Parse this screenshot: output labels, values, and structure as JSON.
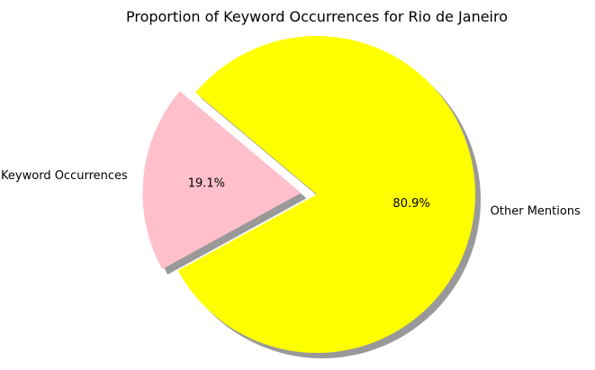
{
  "chart_data": {
    "type": "pie",
    "title": "Proportion of Keyword Occurrences for Rio de Janeiro",
    "slices": [
      {
        "label": "Keyword Occurrences",
        "value": 19.1,
        "pct_label": "19.1%",
        "color": "#ffc0cb",
        "exploded": true
      },
      {
        "label": "Other Mentions",
        "value": 80.9,
        "pct_label": "80.9%",
        "color": "#ffff00",
        "exploded": false
      }
    ],
    "shadow": true,
    "legend": "none"
  }
}
